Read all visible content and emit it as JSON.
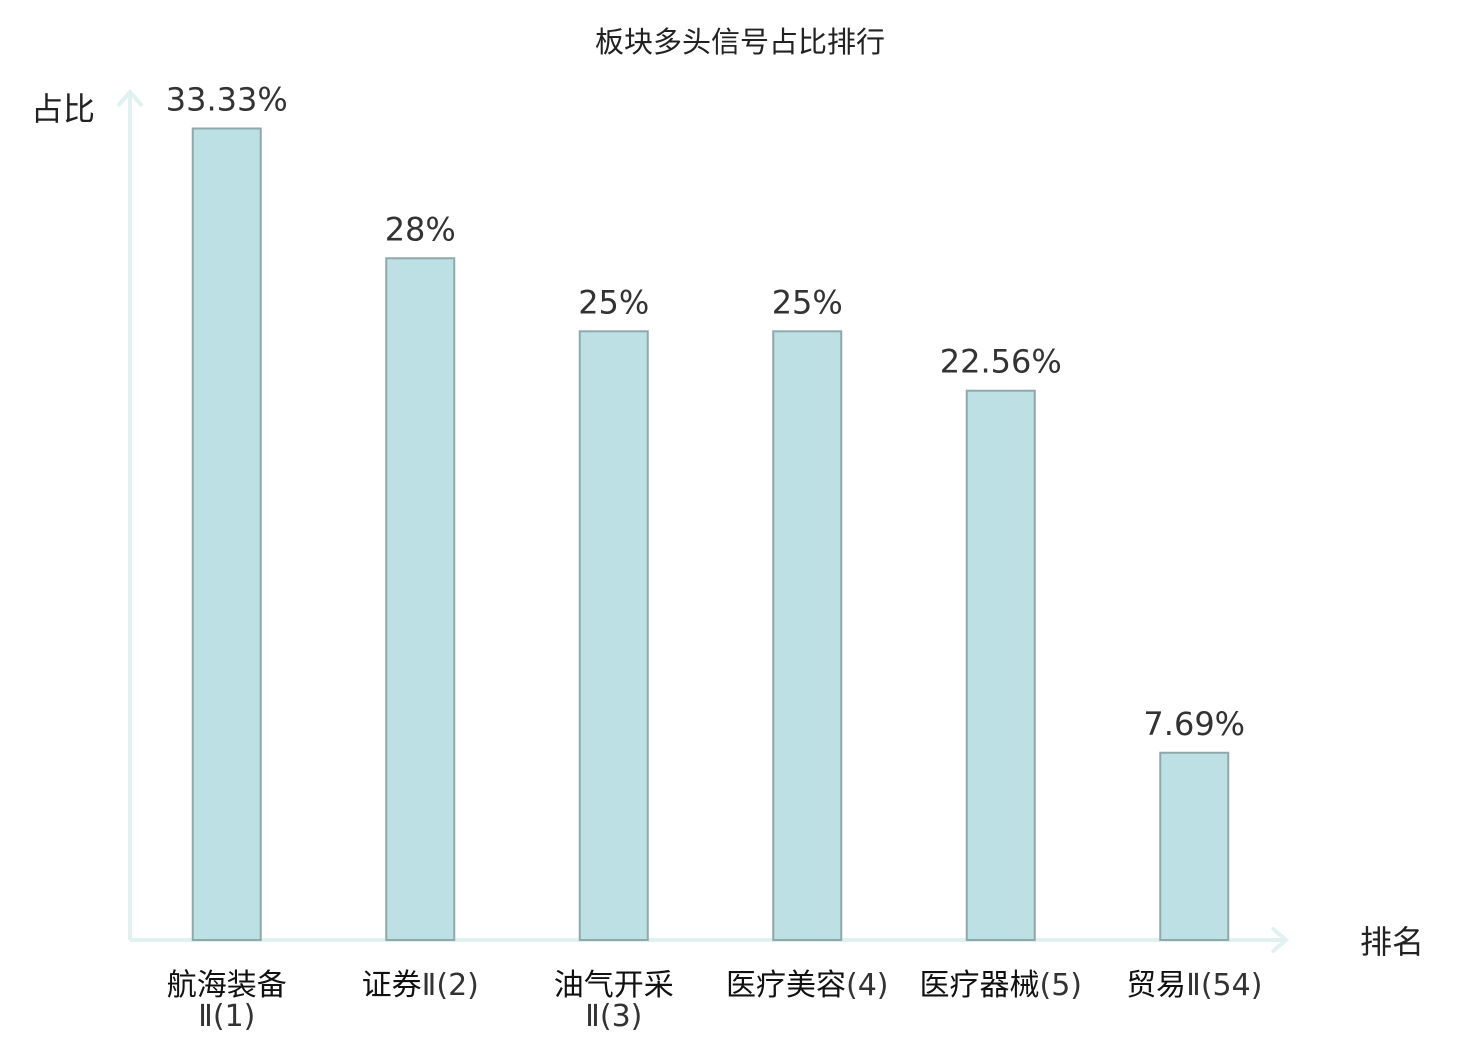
{
  "chart_data": {
    "type": "bar",
    "title": "板块多头信号占比排行",
    "xlabel": "排名",
    "ylabel": "占比",
    "categories": [
      {
        "name": "航海装备",
        "rank": "Ⅱ(1)",
        "label": "航海装备Ⅱ(1)"
      },
      {
        "name": "证券",
        "rank": "Ⅱ(2)",
        "label": "证券Ⅱ(2)"
      },
      {
        "name": "油气开采",
        "rank": "Ⅱ(3)",
        "label": "油气开采Ⅱ(3)"
      },
      {
        "name": "医疗美容",
        "rank": "(4)",
        "label": "医疗美容(4)"
      },
      {
        "name": "医疗器械",
        "rank": "(5)",
        "label": "医疗器械(5)"
      },
      {
        "name": "贸易",
        "rank": "Ⅱ(54)",
        "label": "贸易Ⅱ(54)"
      }
    ],
    "values": [
      33.33,
      28,
      25,
      25,
      22.56,
      7.69
    ],
    "value_labels": [
      "33.33%",
      "28%",
      "25%",
      "25%",
      "22.56%",
      "7.69%"
    ],
    "ylim": [
      0,
      34.5
    ],
    "grid": false,
    "legend": "none",
    "highlight_index": 5
  },
  "colors": {
    "bar_fill": "#bce0e3",
    "bar_stroke": "#8fa8aa",
    "axis": "#dff2ef",
    "text": "#222222",
    "value_text": "#333333",
    "highlight_text": "#d42020"
  }
}
